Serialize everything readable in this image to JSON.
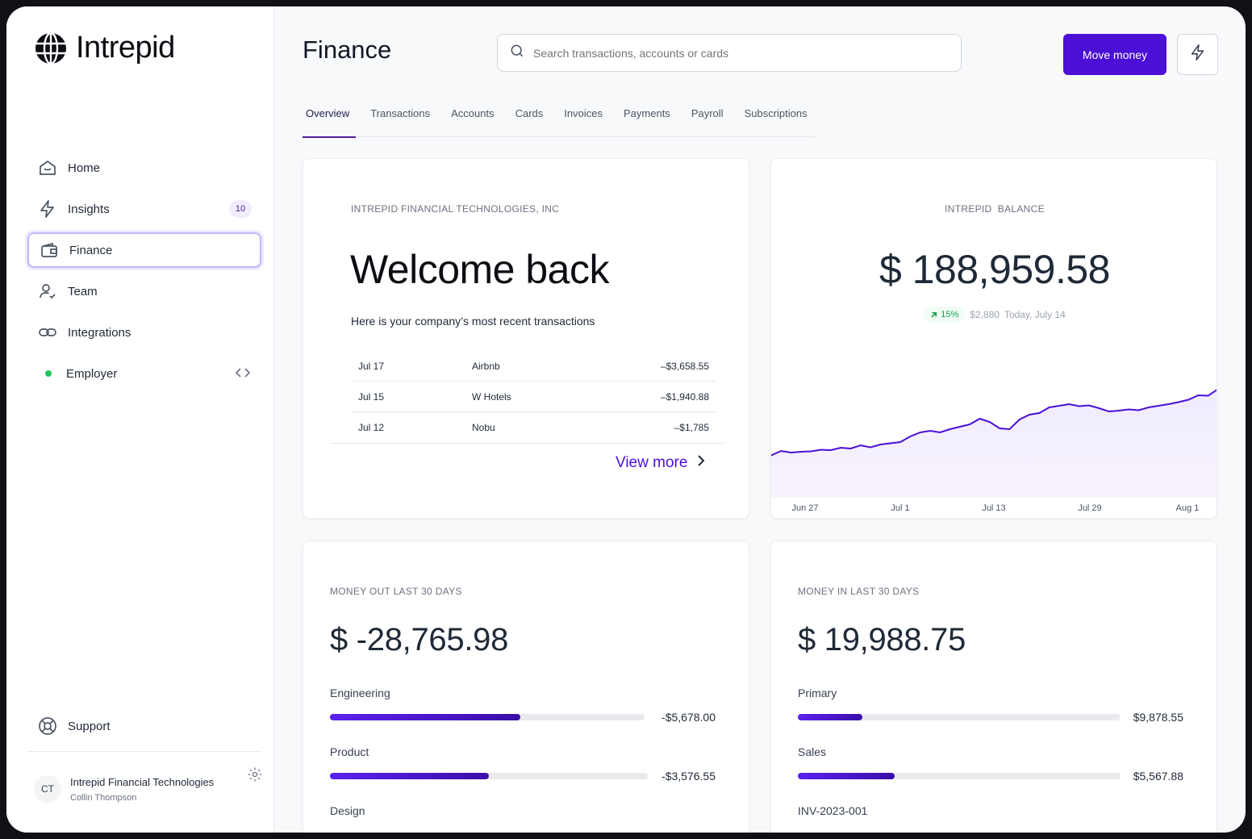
{
  "app": {
    "logo_text": "Intrepid",
    "page_title": "Finance"
  },
  "search": {
    "placeholder": "Search transactions, accounts or cards"
  },
  "header": {
    "primary_button": "Move money"
  },
  "sidebar": {
    "items": [
      {
        "label": "Home",
        "icon": "home-icon"
      },
      {
        "label": "Insights",
        "icon": "bolt-icon",
        "badge": "10"
      },
      {
        "label": "Finance",
        "icon": "wallet-icon",
        "active": true
      },
      {
        "label": "Team",
        "icon": "user-check-icon"
      },
      {
        "label": "Integrations",
        "icon": "link-icon"
      },
      {
        "label": "Employer",
        "icon": "status-dot",
        "status_color": "#22c55e"
      }
    ],
    "support_label": "Support",
    "user": {
      "initials": "CT",
      "company": "Intrepid Financial Technologies",
      "name": "Collin Thompson"
    }
  },
  "tabs": [
    "Overview",
    "Transactions",
    "Accounts",
    "Cards",
    "Invoices",
    "Payments",
    "Payroll",
    "Subscriptions"
  ],
  "active_tab": "Overview",
  "welcome": {
    "company": "INTREPID FINANCIAL TECHNOLOGIES, INC",
    "title": "Welcome back",
    "subtitle": "Here is your company’s most recent transactions",
    "transactions": [
      {
        "date": "Jul 17",
        "merchant": "Airbnb",
        "amount": "–$3,658.55"
      },
      {
        "date": "Jul 15",
        "merchant": "W Hotels",
        "amount": "–$1,940.88"
      },
      {
        "date": "Jul 12",
        "merchant": "Nobu",
        "amount": "–$1,785"
      }
    ],
    "view_more": "View more"
  },
  "balance": {
    "label": "INTREPID  BALANCE",
    "amount": "$ 188,959.58",
    "change_pct": "15%",
    "change_amount": "$2,880",
    "change_date": "Today, July 14"
  },
  "chart_data": {
    "type": "area",
    "x_ticks": [
      "Jun 27",
      "Jul 1",
      "Jul 13",
      "Jul 29",
      "Aug 1"
    ],
    "values": [
      172500,
      173600,
      173200,
      173400,
      173500,
      173900,
      173800,
      174400,
      174200,
      175000,
      174500,
      175200,
      175500,
      175800,
      177200,
      178200,
      178600,
      178200,
      179000,
      179600,
      180200,
      181600,
      180800,
      179200,
      179000,
      181400,
      182600,
      183000,
      184400,
      184800,
      185200,
      184700,
      184900,
      184200,
      183400,
      183600,
      183900,
      183700,
      184400,
      184800,
      185200,
      185700,
      186300,
      187400,
      187300,
      188959.58
    ],
    "line_color": "#4c0fd6",
    "grid": false
  },
  "money_out": {
    "label": "MONEY OUT LAST 30 DAYS",
    "amount": "$ -28,765.98",
    "categories": [
      {
        "name": "Engineering",
        "amount": "-$5,678.00",
        "fraction": 0.605
      },
      {
        "name": "Product",
        "amount": "-$3,576.55",
        "fraction": 0.5
      },
      {
        "name": "Design",
        "amount": "",
        "fraction": 0
      }
    ]
  },
  "money_in": {
    "label": "MONEY IN LAST 30 DAYS",
    "amount": "$ 19,988.75",
    "categories": [
      {
        "name": "Primary",
        "amount": "$9,878.55",
        "fraction": 0.2
      },
      {
        "name": "Sales",
        "amount": "$5,567.88",
        "fraction": 0.3
      },
      {
        "name": "INV-2023-001",
        "amount": "",
        "fraction": 0
      }
    ]
  }
}
